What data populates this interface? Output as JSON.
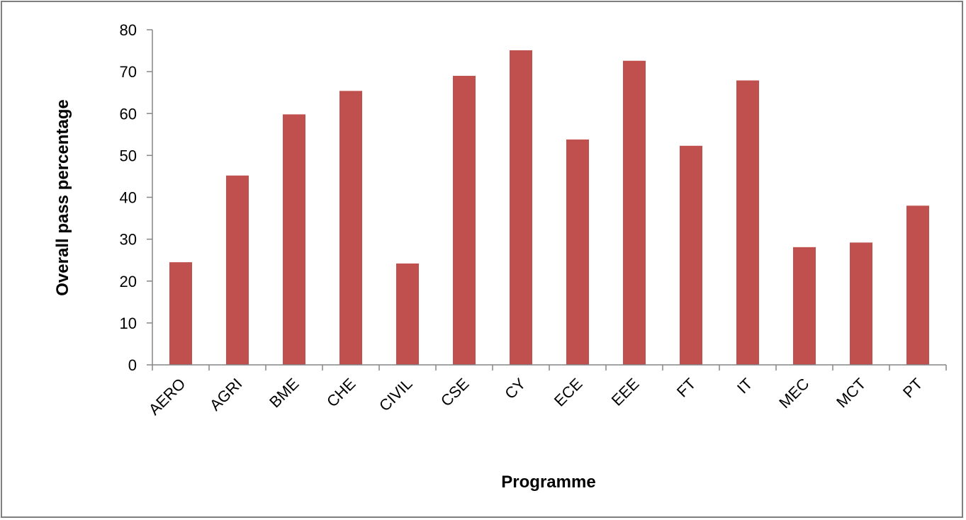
{
  "chart_data": {
    "type": "bar",
    "title": "",
    "xlabel": "Programme",
    "ylabel": "Overall pass percentage",
    "categories": [
      "AERO",
      "AGRI",
      "BME",
      "CHE",
      "CIVIL",
      "CSE",
      "CY",
      "ECE",
      "EEE",
      "FT",
      "IT",
      "MEC",
      "MCT",
      "PT"
    ],
    "series": [
      {
        "values": [
          24.5,
          45.2,
          59.8,
          65.4,
          24.2,
          69.0,
          75.1,
          53.8,
          72.6,
          52.3,
          67.9,
          28.1,
          29.2,
          38.0
        ]
      }
    ],
    "ylim": [
      0,
      80
    ],
    "yticks": [
      0,
      10,
      20,
      30,
      40,
      50,
      60,
      70,
      80
    ],
    "grid": false,
    "legend": "none",
    "bar_color": "#c0504d"
  }
}
